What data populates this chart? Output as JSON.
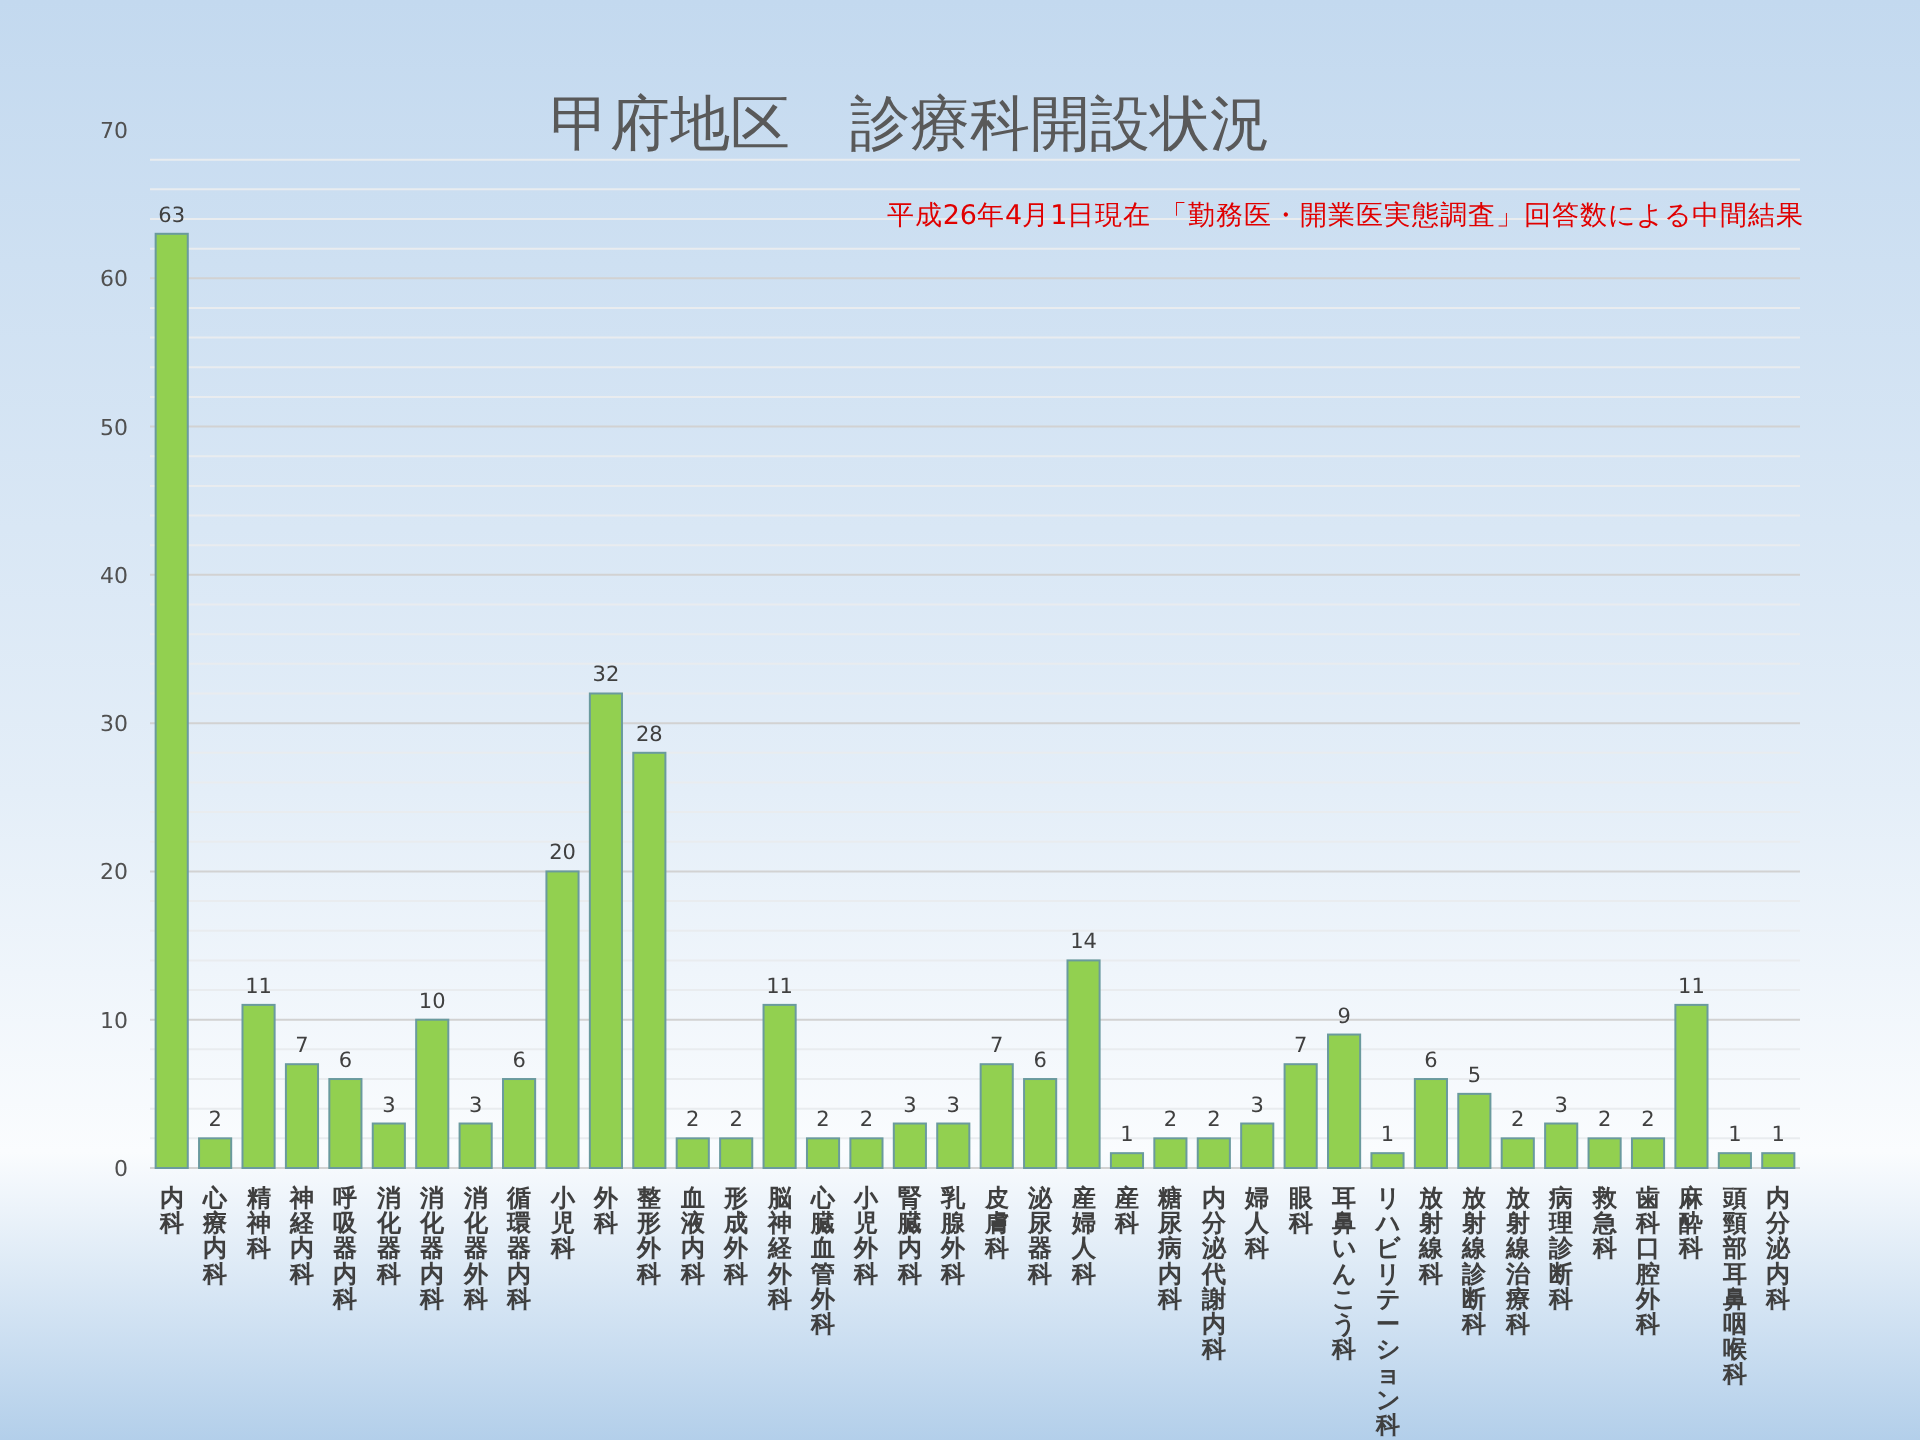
{
  "chart_data": {
    "type": "bar",
    "title": "甲府地区　診療科開設状況",
    "subtitle": "平成26年4月1日現在 「勤務医・開業医実態調査」回答数による中間結果",
    "categories": [
      "内科",
      "心療内科",
      "精神科",
      "神経内科",
      "呼吸器内科",
      "消化器科",
      "消化器内科",
      "消化器外科",
      "循環器内科",
      "小児科",
      "外科",
      "整形外科",
      "血液内科",
      "形成外科",
      "脳神経外科",
      "心臓血管外科",
      "小児外科",
      "腎臓内科",
      "乳腺外科",
      "皮膚科",
      "泌尿器科",
      "産婦人科",
      "産科",
      "糖尿病内科",
      "内分泌代謝内科",
      "婦人科",
      "眼科",
      "耳鼻いんこう科",
      "リハビリテーション科",
      "放射線科",
      "放射線診断科",
      "放射線治療科",
      "病理診断科",
      "救急科",
      "歯科口腔外科",
      "麻酔科",
      "頭頸部耳鼻咽喉科",
      "内分泌内科"
    ],
    "values": [
      63,
      2,
      11,
      7,
      6,
      3,
      10,
      3,
      6,
      20,
      32,
      28,
      2,
      2,
      11,
      2,
      2,
      3,
      3,
      7,
      6,
      14,
      1,
      2,
      2,
      3,
      7,
      9,
      1,
      6,
      5,
      2,
      3,
      2,
      2,
      11,
      1,
      1
    ],
    "color": "#92d050",
    "ylim": [
      0,
      70
    ],
    "yticks": [
      0,
      {
        "value": 2,
        "label": null
      },
      {
        "value": 4,
        "label": null
      },
      {
        "value": 6,
        "label": null
      },
      {
        "value": 8,
        "label": null
      },
      10,
      {
        "value": 12,
        "label": null
      },
      {
        "value": 14,
        "label": null
      },
      {
        "value": 16,
        "label": null
      },
      {
        "value": 18,
        "label": null
      },
      20,
      {
        "value": 22,
        "label": null
      },
      {
        "value": 24,
        "label": null
      },
      {
        "value": 26,
        "label": null
      },
      {
        "value": 28,
        "label": null
      },
      30,
      {
        "value": 32,
        "label": null
      },
      {
        "value": 34,
        "label": null
      },
      {
        "value": 36,
        "label": null
      },
      {
        "value": 38,
        "label": null
      },
      40,
      {
        "value": 42,
        "label": null
      },
      {
        "value": 44,
        "label": null
      },
      {
        "value": 46,
        "label": null
      },
      {
        "value": 48,
        "label": null
      },
      50,
      {
        "value": 52,
        "label": null
      },
      {
        "value": 54,
        "label": null
      },
      {
        "value": 56,
        "label": null
      },
      {
        "value": 58,
        "label": null
      },
      60,
      {
        "value": 62,
        "label": null
      },
      {
        "value": 64,
        "label": null
      },
      {
        "value": 66,
        "label": null
      },
      {
        "value": 68,
        "label": null
      },
      70
    ],
    "grid": "y",
    "data_labels": true
  }
}
